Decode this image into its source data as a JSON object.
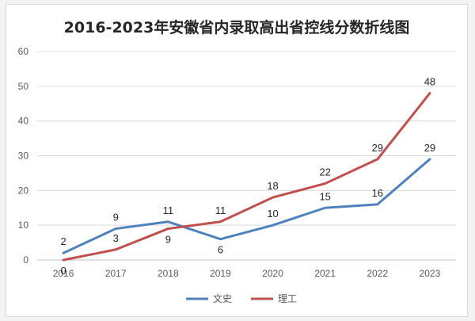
{
  "chart_data": {
    "type": "line",
    "title": "2016-2023年安徽省内录取高出省控线分数折线图",
    "categories": [
      "2016",
      "2017",
      "2018",
      "2019",
      "2020",
      "2021",
      "2022",
      "2023"
    ],
    "series": [
      {
        "name": "文史",
        "color": "#4f81bd",
        "values": [
          2,
          9,
          11,
          6,
          10,
          15,
          16,
          29
        ]
      },
      {
        "name": "理工",
        "color": "#c0504d",
        "values": [
          0,
          3,
          9,
          11,
          18,
          22,
          29,
          48
        ]
      }
    ],
    "xlabel": "",
    "ylabel": "",
    "ylim": [
      0,
      60
    ],
    "yticks": [
      0,
      10,
      20,
      30,
      40,
      50,
      60
    ],
    "grid": true,
    "legend_position": "bottom",
    "data_labels": true
  }
}
